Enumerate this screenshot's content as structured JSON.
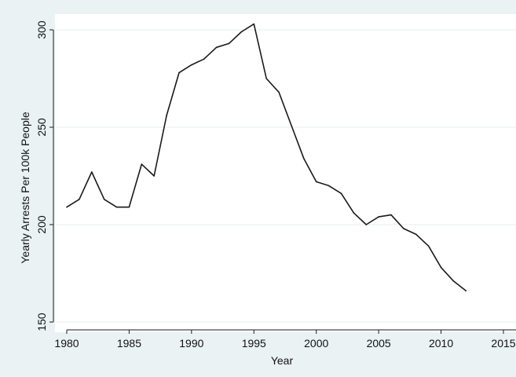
{
  "chart_data": {
    "type": "line",
    "title": "",
    "xlabel": "Year",
    "ylabel": "Yearly Arrests Per 100k People",
    "xlim": [
      1980,
      2015
    ],
    "ylim": [
      150,
      300
    ],
    "xticks": [
      1980,
      1985,
      1990,
      1995,
      2000,
      2005,
      2010,
      2015
    ],
    "xtick_labels": [
      "1980",
      "1985",
      "1990",
      "1995",
      "2000",
      "2005",
      "2010",
      "2015"
    ],
    "yticks": [
      150,
      200,
      250,
      300
    ],
    "ytick_labels": [
      "150",
      "200",
      "250",
      "300"
    ],
    "grid": "horizontal",
    "legend": "none",
    "x": [
      1980,
      1981,
      1982,
      1983,
      1984,
      1985,
      1986,
      1987,
      1988,
      1989,
      1990,
      1991,
      1992,
      1993,
      1994,
      1995,
      1996,
      1997,
      1998,
      1999,
      2000,
      2001,
      2002,
      2003,
      2004,
      2005,
      2006,
      2007,
      2008,
      2009,
      2010,
      2011,
      2012
    ],
    "series": [
      {
        "values": [
          209,
          213,
          227,
          213,
          209,
          209,
          231,
          225,
          256,
          278,
          282,
          285,
          291,
          293,
          299,
          303,
          275,
          268,
          251,
          234,
          222,
          220,
          216,
          206,
          200,
          204,
          205,
          198,
          195,
          189,
          178,
          171,
          166
        ],
        "color": "#1a1a1a"
      }
    ],
    "colors": {
      "background": "#eaf2f3",
      "plot_background": "#ffffff",
      "grid": "#e6ecee",
      "axis": "#1a1a1a",
      "line": "#1a1a1a"
    }
  }
}
